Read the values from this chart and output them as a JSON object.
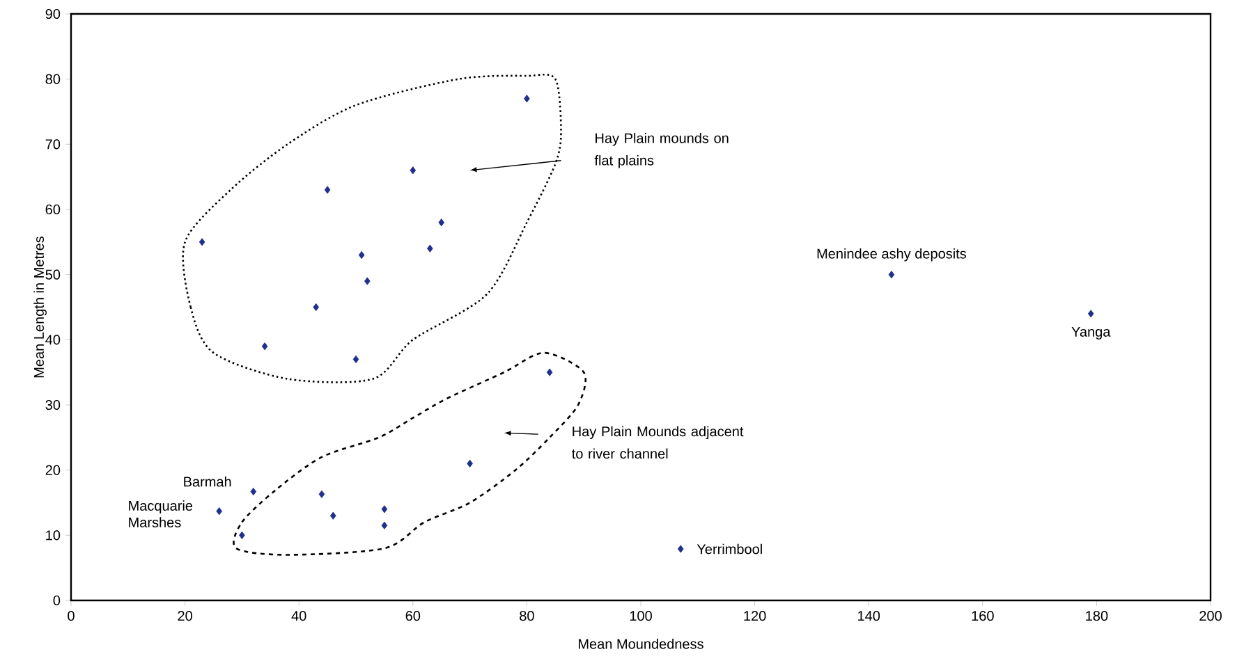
{
  "chart_data": {
    "type": "scatter",
    "xlabel": "Mean Moundedness",
    "ylabel": "Mean Length in Metres",
    "x": [
      23,
      34,
      45,
      43,
      51,
      52,
      50,
      60,
      63,
      65,
      80,
      84,
      70,
      55,
      55,
      46,
      44,
      32,
      30,
      26,
      107,
      144,
      179
    ],
    "values": [
      55,
      39,
      63,
      45,
      53,
      49,
      37,
      66,
      54,
      58,
      77,
      35,
      21,
      14,
      11.5,
      13,
      16.3,
      16.7,
      10,
      13.7,
      7.9,
      50,
      44
    ],
    "color": "#1f2f8c",
    "marker": "diamond",
    "grid": false,
    "xlim": [
      0,
      200
    ],
    "xticks": [
      0,
      20,
      40,
      60,
      80,
      100,
      120,
      140,
      160,
      180,
      200
    ],
    "ylim": [
      0,
      90
    ],
    "yticks": [
      0,
      10,
      20,
      30,
      40,
      50,
      60,
      70,
      80,
      90
    ],
    "annotations": [
      "Hay Plain mounds on flat plains",
      "Hay Plain Mounds adjacent to river channel",
      {
        "text": "Menindee ashy deposits",
        "x": 144,
        "y": 50
      },
      {
        "text": "Yanga",
        "x": 179,
        "y": 44
      },
      {
        "text": "Yerrimbool",
        "x": 107,
        "y": 7.9
      },
      {
        "text": "Barmah",
        "x": 32,
        "y": 16.7
      },
      {
        "text": "Macquarie Marshes",
        "x": 26,
        "y": 13.7
      }
    ]
  }
}
